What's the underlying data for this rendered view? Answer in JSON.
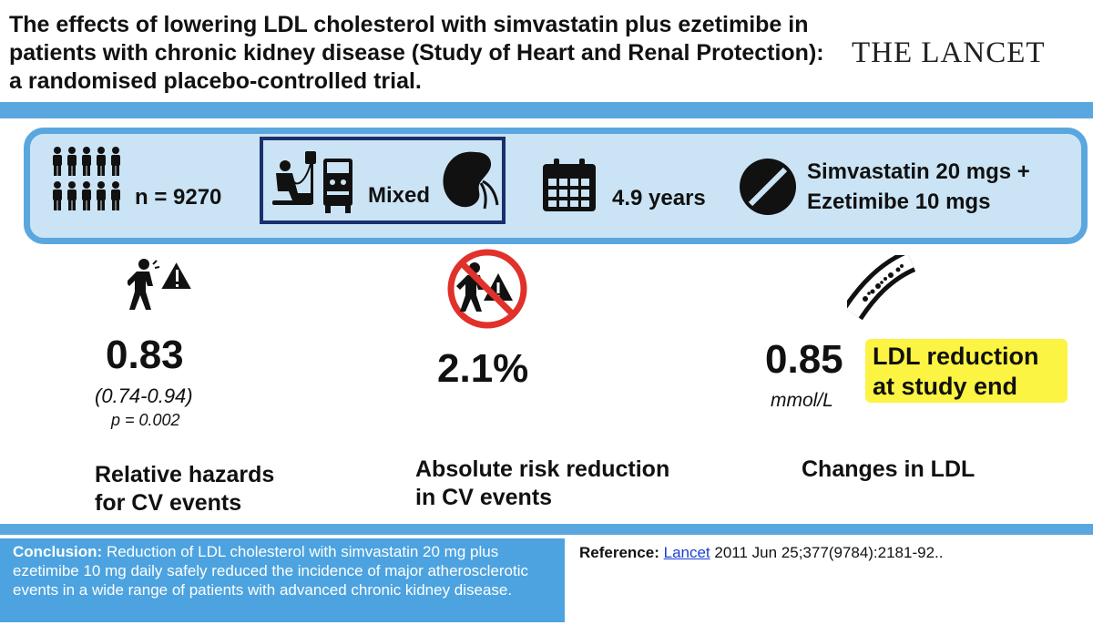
{
  "header": {
    "title": "The effects of lowering LDL cholesterol with simvastatin plus ezetimibe in patients with chronic kidney disease (Study of Heart and Renal Protection): a randomised placebo-controlled trial.",
    "journal": "THE LANCET"
  },
  "summary": {
    "participants_label": "n = 9270",
    "population_label": "Mixed",
    "duration_label": "4.9 years",
    "intervention_line1": "Simvastatin 20  mgs +",
    "intervention_line2": "Ezetimibe 10 mgs",
    "icons": [
      "people-icon",
      "dialysis-patient-icon",
      "kidney-icon",
      "calendar-icon",
      "pill-icon"
    ]
  },
  "results": {
    "hazard": {
      "value": "0.83",
      "ci": "(0.74-0.94)",
      "p": "p = 0.002",
      "caption_line1": "Relative hazards",
      "caption_line2": "for CV events"
    },
    "arr": {
      "value": "2.1%",
      "caption_line1": "Absolute risk reduction",
      "caption_line2": "in CV events"
    },
    "ldl": {
      "value": "0.85",
      "unit": "mmol/L",
      "highlight_line1": "LDL reduction",
      "highlight_line2": "at study end",
      "caption": "Changes in LDL"
    }
  },
  "conclusion": {
    "label": "Conclusion:",
    "text": " Reduction of LDL cholesterol with simvastatin 20 mg plus ezetimibe 10 mg daily safely reduced the incidence of major atherosclerotic events in a wide range of patients with advanced chronic kidney disease."
  },
  "reference": {
    "label": "Reference: ",
    "link_text": "Lancet",
    "citation": " 2011 Jun 25;377(9784):2181-92.."
  },
  "colors": {
    "band": "#5aa7df",
    "panel": "#cbe4f5",
    "box_border": "#1a2f6e",
    "highlight": "#fbf442",
    "warning_red": "#e0312b"
  }
}
